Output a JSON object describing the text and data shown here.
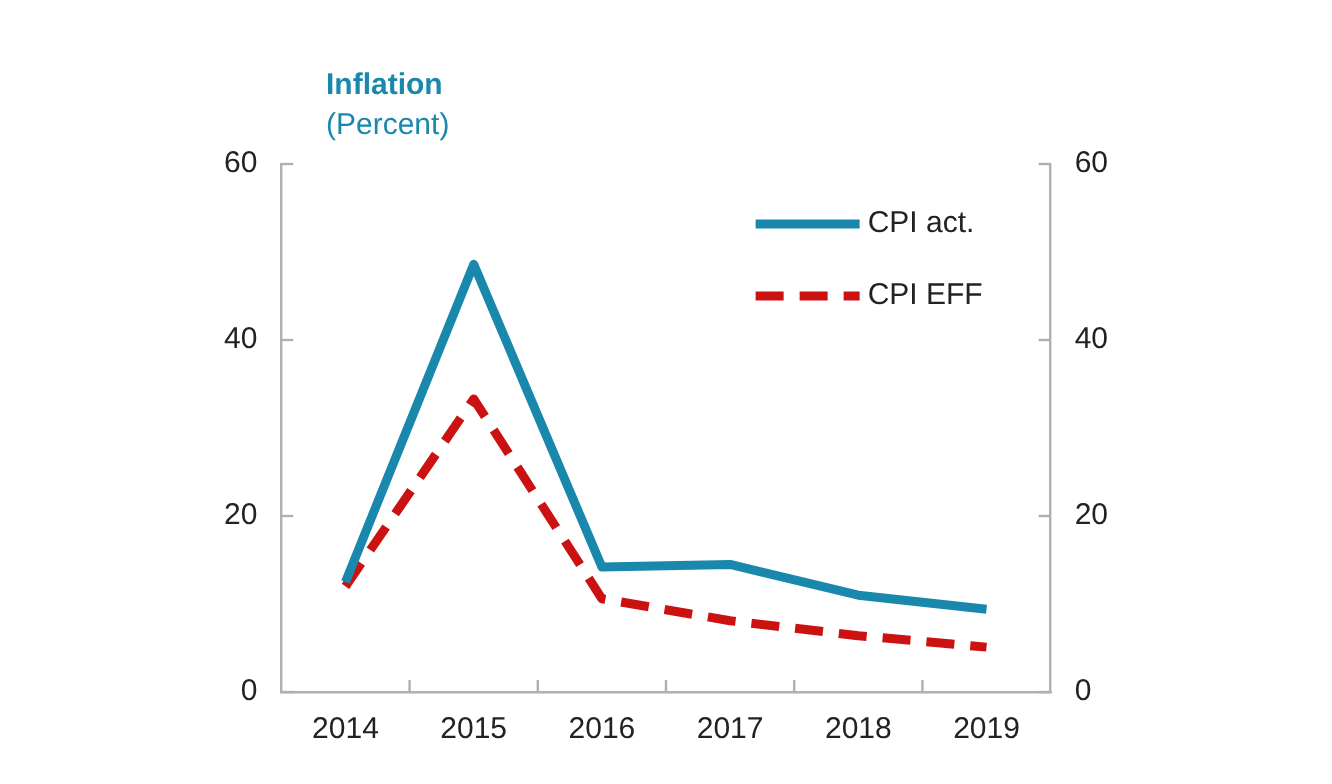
{
  "chart_data": {
    "type": "line",
    "title": "Inflation",
    "subtitle": "(Percent)",
    "categories": [
      "2014",
      "2015",
      "2016",
      "2017",
      "2018",
      "2019"
    ],
    "series": [
      {
        "name": "CPI act.",
        "color": "#1a88ac",
        "line_style": "solid",
        "values": [
          12.5,
          48.6,
          14.2,
          14.5,
          11.0,
          9.4
        ]
      },
      {
        "name": "CPI EFF",
        "color": "#cc1111",
        "line_style": "dashed",
        "values": [
          12,
          33.3,
          10.6,
          8.1,
          6.4,
          5.1
        ]
      }
    ],
    "ylim": [
      0,
      60
    ],
    "yticks": [
      0,
      20,
      40,
      60
    ],
    "y2lim": [
      0,
      60
    ],
    "y2ticks": [
      0,
      20,
      40,
      60
    ],
    "grid": false,
    "legend": "top right",
    "marker": "none"
  }
}
